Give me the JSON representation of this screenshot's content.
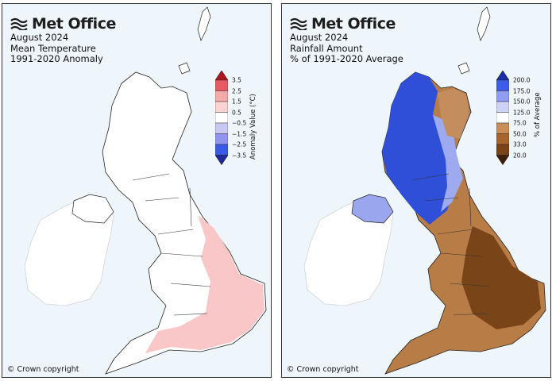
{
  "brand": "Met Office",
  "copyright": "© Crown copyright",
  "panels": [
    {
      "id": "temperature",
      "title_lines": [
        "August 2024",
        "Mean Temperature",
        "1991-2020 Anomaly"
      ],
      "colorbar": {
        "label": "Anomaly Value (°C)",
        "ticks": [
          "3.5",
          "2.5",
          "1.5",
          "0.5",
          "−0.5",
          "−1.5",
          "−2.5",
          "−3.5"
        ],
        "colors": [
          "#b3151f",
          "#e85a63",
          "#f6a9a9",
          "#fbd3d3",
          "#ffffff",
          "#c9c8f2",
          "#8f95ef",
          "#3a5ae6",
          "#1d2a9e"
        ]
      }
    },
    {
      "id": "rainfall",
      "title_lines": [
        "August 2024",
        "Rainfall Amount",
        "% of 1991-2020 Average"
      ],
      "colorbar": {
        "label": "% of Average",
        "ticks": [
          "200.0",
          "175.0",
          "150.0",
          "125.0",
          "75.0",
          "50.0",
          "33.0",
          "20.0"
        ],
        "colors": [
          "#1b2fa8",
          "#3b5ee8",
          "#8e9df2",
          "#cdd2f6",
          "#ffffff",
          "#c98e5a",
          "#a6652f",
          "#7a4419",
          "#3e1e07"
        ]
      }
    }
  ]
}
